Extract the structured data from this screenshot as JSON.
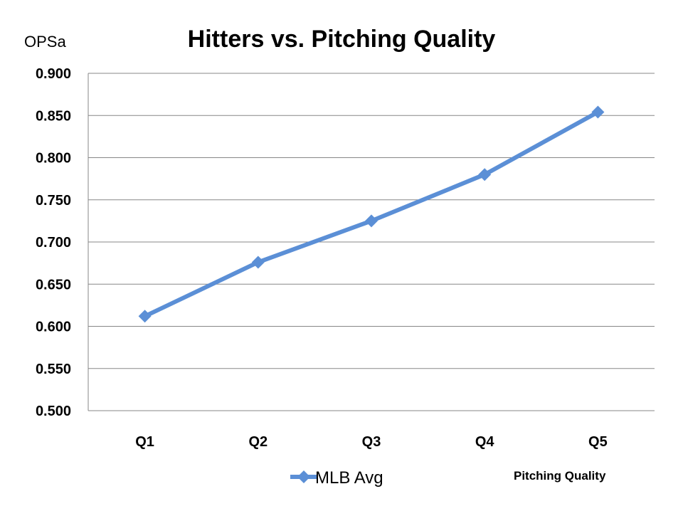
{
  "chart_data": {
    "type": "line",
    "title": "Hitters vs. Pitching Quality",
    "ylabel": "OPSa",
    "xlabel": "Pitching Quality",
    "categories": [
      "Q1",
      "Q2",
      "Q3",
      "Q4",
      "Q5"
    ],
    "series": [
      {
        "name": "MLB Avg",
        "values": [
          0.612,
          0.676,
          0.725,
          0.78,
          0.854
        ],
        "color": "#5b8fd6",
        "marker": "diamond"
      }
    ],
    "ylim": [
      0.5,
      0.9
    ],
    "yticks": [
      "0.500",
      "0.550",
      "0.600",
      "0.650",
      "0.700",
      "0.750",
      "0.800",
      "0.850",
      "0.900"
    ],
    "grid": true,
    "legend_position": "bottom"
  }
}
